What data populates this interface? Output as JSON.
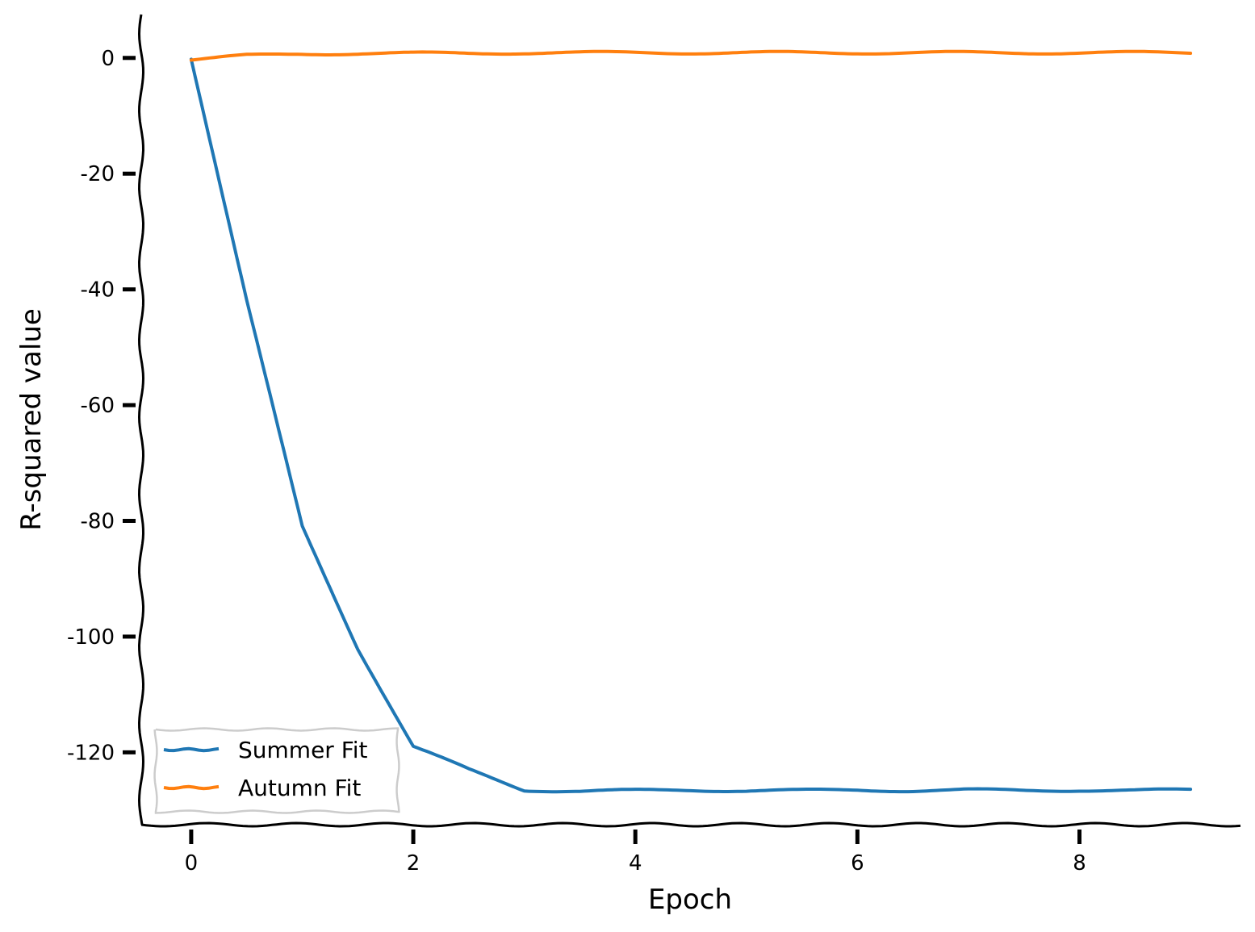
{
  "chart_data": {
    "type": "line",
    "xlabel": "Epoch",
    "ylabel": "R-squared value",
    "xlim": [
      -0.45,
      9.45
    ],
    "ylim": [
      -132.5,
      7.5
    ],
    "x_ticks": [
      0,
      2,
      4,
      6,
      8
    ],
    "y_ticks": [
      0,
      -20,
      -40,
      -60,
      -80,
      -100,
      -120
    ],
    "grid": false,
    "legend_position": "lower-left",
    "style": "xkcd",
    "series": [
      {
        "name": "Summer Fit",
        "color": "#1f77b4",
        "x": [
          0,
          0.5,
          1,
          1.5,
          2,
          2.5,
          3,
          3.5,
          4,
          4.5,
          5,
          5.5,
          6,
          6.5,
          7,
          7.5,
          8,
          8.5,
          9
        ],
        "y": [
          0,
          -42,
          -81,
          -102,
          -119,
          -123,
          -126.5,
          -126.7,
          -126.6,
          -126.5,
          -126.6,
          -126.6,
          -126.5,
          -126.6,
          -126.5,
          -126.6,
          -126.5,
          -126.6,
          -126.5
        ]
      },
      {
        "name": "Autumn Fit",
        "color": "#ff7f0e",
        "x": [
          0,
          0.5,
          1,
          1.5,
          2,
          2.5,
          3,
          3.5,
          4,
          4.5,
          5,
          5.5,
          6,
          6.5,
          7,
          7.5,
          8,
          8.5,
          9
        ],
        "y": [
          -0.3,
          0.4,
          0.7,
          0.8,
          0.8,
          0.8,
          0.9,
          0.9,
          0.9,
          0.9,
          0.9,
          0.9,
          0.9,
          0.9,
          0.9,
          0.9,
          0.9,
          0.9,
          0.9
        ]
      }
    ]
  }
}
